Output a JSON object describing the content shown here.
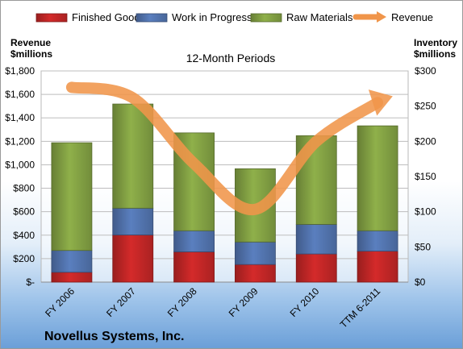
{
  "chart_data": {
    "type": "bar",
    "title": "12-Month Periods",
    "company": "Novellus Systems, Inc.",
    "categories": [
      "FY 2006",
      "FY 2007",
      "FY 2008",
      "FY 2009",
      "FY 2010",
      "TTM 6-2011"
    ],
    "left_axis": {
      "label_line1": "Revenue",
      "label_line2": "$millions",
      "range": [
        0,
        1800
      ],
      "ticks": [
        "$-",
        "$200",
        "$400",
        "$600",
        "$800",
        "$1,000",
        "$1,200",
        "$1,400",
        "$1,600",
        "$1,800"
      ]
    },
    "right_axis": {
      "label_line1": "Inventory",
      "label_line2": "$millions",
      "range": [
        0,
        300
      ],
      "ticks": [
        "$0",
        "$50",
        "$100",
        "$150",
        "$200",
        "$250",
        "$300"
      ]
    },
    "series": [
      {
        "name": "Finished Goods",
        "axis": "right",
        "color": "#d42a2a",
        "values": [
          14,
          67,
          43,
          25,
          40,
          44
        ]
      },
      {
        "name": "Work in Progress",
        "axis": "right",
        "color": "#5a7fbf",
        "values": [
          31,
          38,
          30,
          32,
          42,
          29
        ]
      },
      {
        "name": "Raw Materials",
        "axis": "right",
        "color": "#8fb04a",
        "values": [
          153,
          148,
          139,
          104,
          126,
          149
        ]
      },
      {
        "name": "Revenue",
        "axis": "left",
        "type": "line",
        "color": "#f0954a",
        "values": [
          1660,
          1570,
          1010,
          620,
          1200,
          1530
        ]
      }
    ],
    "legend_position": "top",
    "grid": true
  }
}
